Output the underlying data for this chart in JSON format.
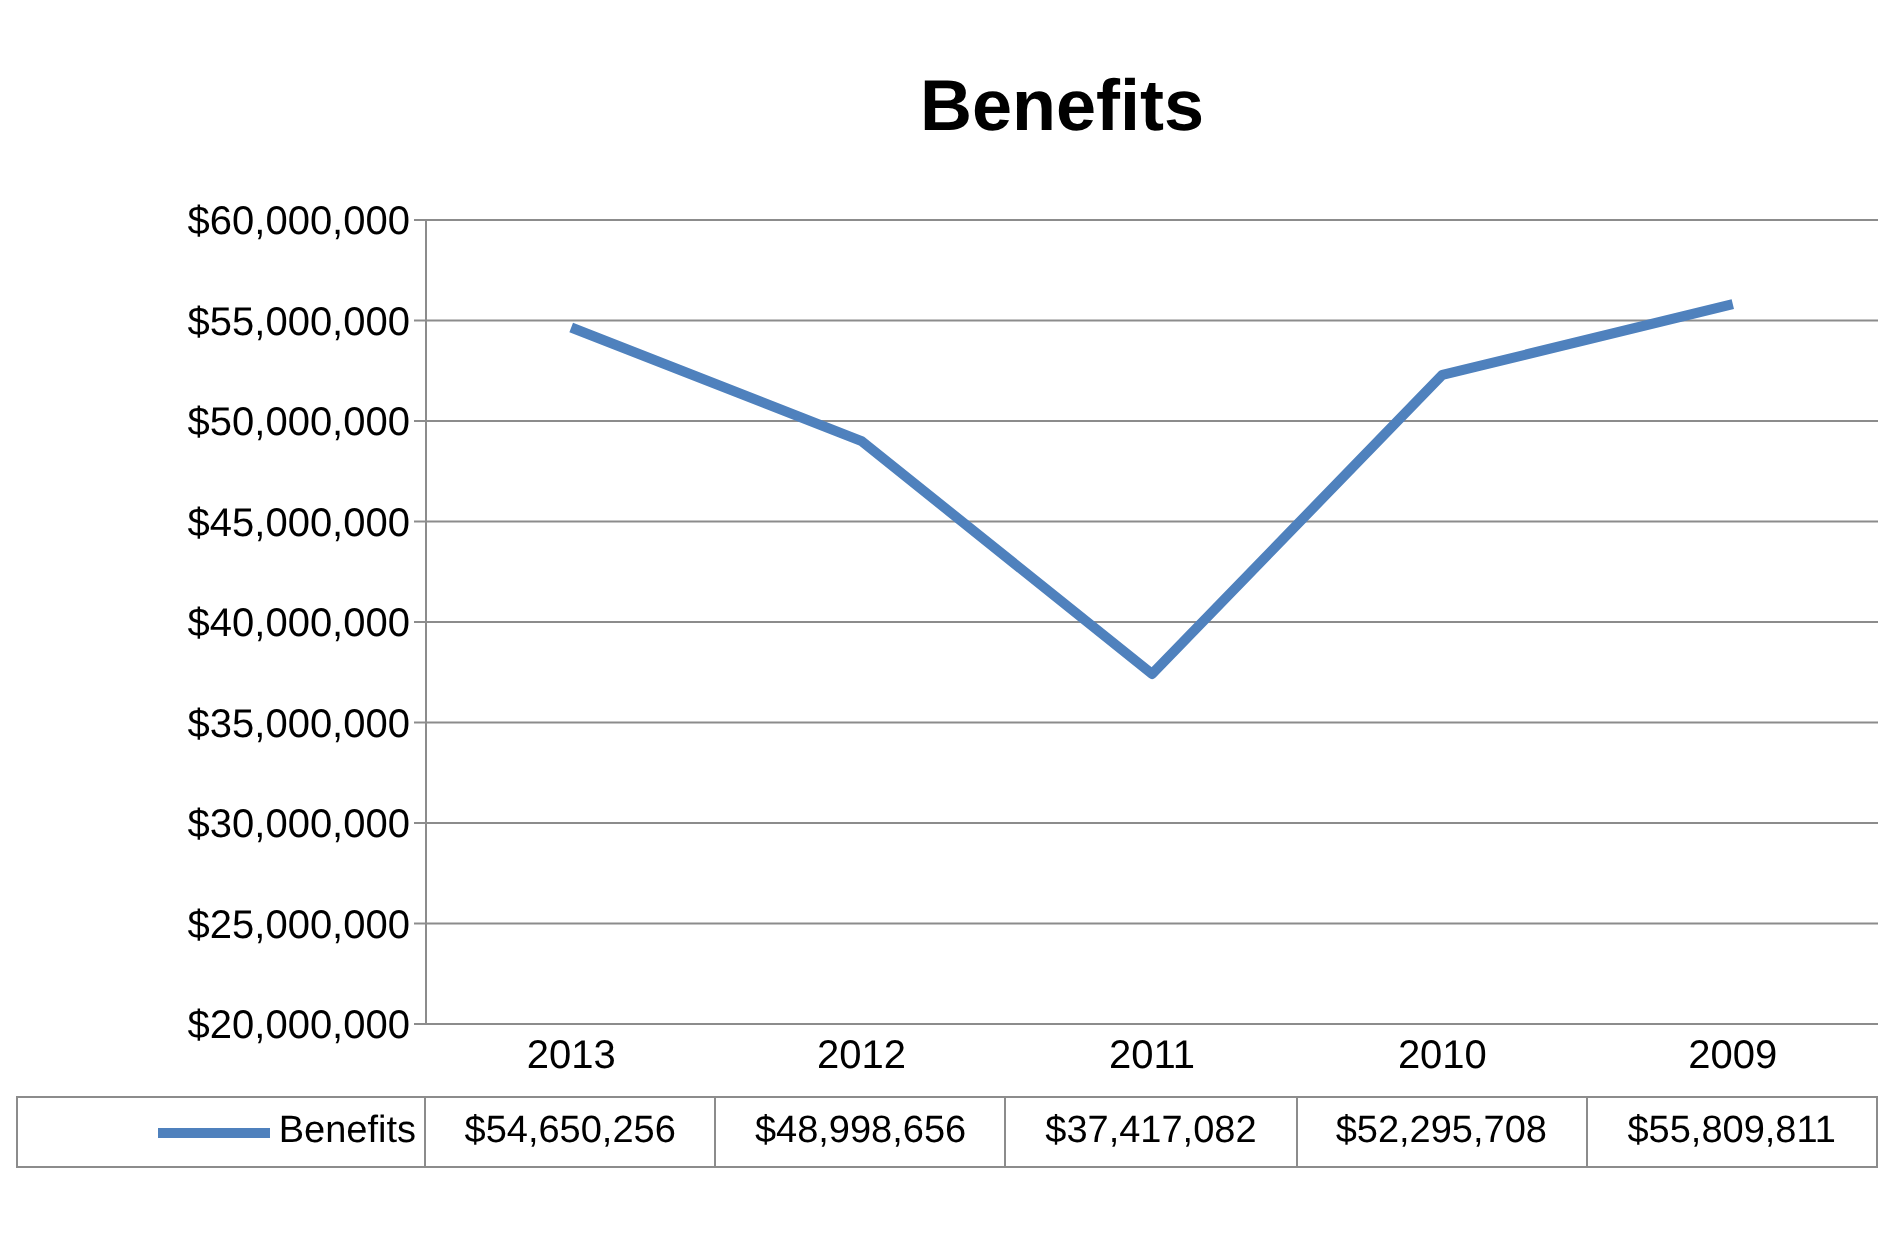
{
  "chart_data": {
    "type": "line",
    "title": "Benefits",
    "categories": [
      "2013",
      "2012",
      "2011",
      "2010",
      "2009"
    ],
    "series": [
      {
        "name": "Benefits",
        "color": "#4f81bd",
        "values": [
          54650256,
          48998656,
          37417082,
          52295708,
          55809811
        ]
      }
    ],
    "ylim": [
      20000000,
      60000000
    ],
    "yticks": [
      {
        "value": 20000000,
        "label": "$20,000,000"
      },
      {
        "value": 25000000,
        "label": "$25,000,000"
      },
      {
        "value": 30000000,
        "label": "$30,000,000"
      },
      {
        "value": 35000000,
        "label": "$35,000,000"
      },
      {
        "value": 40000000,
        "label": "$40,000,000"
      },
      {
        "value": 45000000,
        "label": "$45,000,000"
      },
      {
        "value": 50000000,
        "label": "$50,000,000"
      },
      {
        "value": 55000000,
        "label": "$55,000,000"
      },
      {
        "value": 60000000,
        "label": "$60,000,000"
      }
    ],
    "value_labels": [
      "$54,650,256",
      "$48,998,656",
      "$37,417,082",
      "$52,295,708",
      "$55,809,811"
    ],
    "grid": "y",
    "legend": "bottom",
    "marker": "none",
    "line_style": "solid"
  }
}
